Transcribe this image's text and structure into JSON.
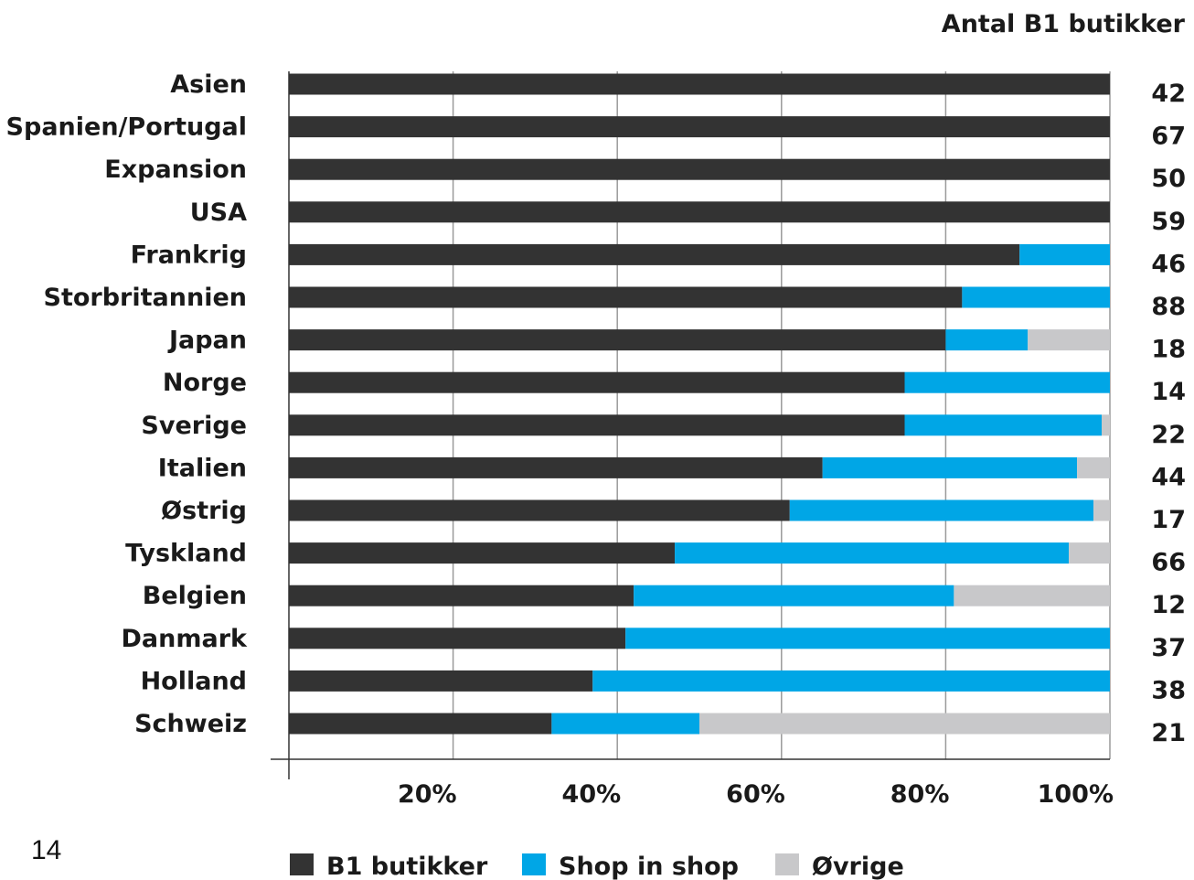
{
  "page_number": "14",
  "colors": {
    "b1": "#333333",
    "shop": "#00a6e6",
    "other": "#c8c8ca",
    "grid": "#9a9a9a",
    "axis": "#333333"
  },
  "chart_data": {
    "type": "bar",
    "orientation": "horizontal",
    "stacked": true,
    "count_header": "Antal B1 butikker",
    "categories": [
      "Asien",
      "Spanien/Portugal",
      "Expansion",
      "USA",
      "Frankrig",
      "Storbritannien",
      "Japan",
      "Norge",
      "Sverige",
      "Italien",
      "Østrig",
      "Tyskland",
      "Belgien",
      "Danmark",
      "Holland",
      "Schweiz"
    ],
    "counts": [
      "42",
      "67",
      "50",
      "59",
      "46",
      "88",
      "18",
      "14",
      "22",
      "44",
      "17",
      "66",
      "12",
      "37",
      "38",
      "21"
    ],
    "series": [
      {
        "name": "B1 butikker",
        "values": [
          100,
          100,
          100,
          100,
          89,
          82,
          80,
          75,
          75,
          65,
          61,
          47,
          42,
          41,
          37,
          32
        ]
      },
      {
        "name": "Shop in shop",
        "values": [
          0,
          0,
          0,
          0,
          11,
          18,
          10,
          25,
          24,
          31,
          37,
          48,
          39,
          59,
          63,
          18
        ]
      },
      {
        "name": "Øvrige",
        "values": [
          0,
          0,
          0,
          0,
          0,
          0,
          10,
          0,
          1,
          4,
          2,
          5,
          19,
          0,
          0,
          50
        ]
      }
    ],
    "xticks": [
      "20%",
      "40%",
      "60%",
      "80%",
      "100%"
    ],
    "xtick_values": [
      20,
      40,
      60,
      80,
      100
    ],
    "xlim": [
      0,
      100
    ],
    "grid": true,
    "legend": "bottom"
  }
}
